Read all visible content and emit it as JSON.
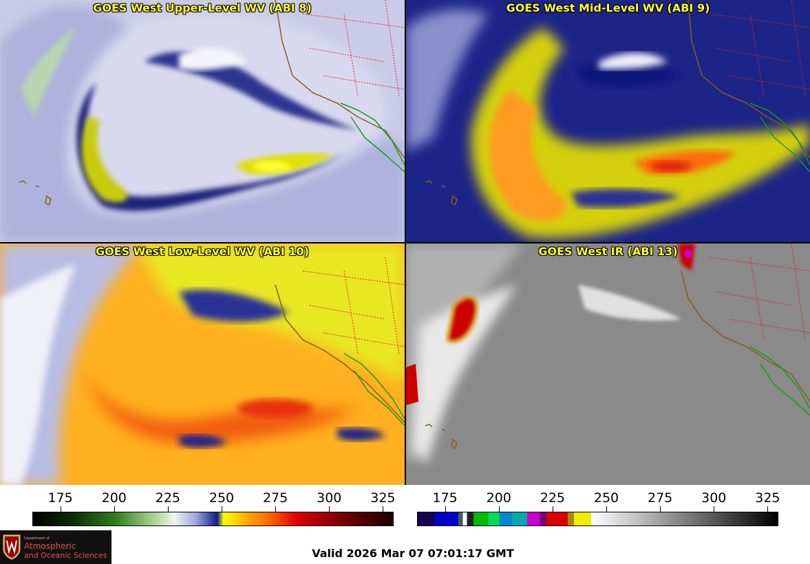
{
  "panels": [
    {
      "id": "p1",
      "title": "GOES West Upper-Level WV (ABI 8)"
    },
    {
      "id": "p2",
      "title": "GOES West Mid-Level WV (ABI 9)"
    },
    {
      "id": "p3",
      "title": "GOES West Low-Level WV (ABI 10)"
    },
    {
      "id": "p4",
      "title": "GOES West IR (ABI 13)"
    }
  ],
  "colorbar_wv": {
    "ticks": [
      "175",
      "200",
      "225",
      "250",
      "275",
      "300",
      "325"
    ],
    "range": [
      162,
      330
    ],
    "stops": [
      {
        "t": 162,
        "c": "#000000"
      },
      {
        "t": 180,
        "c": "#0c2a06"
      },
      {
        "t": 200,
        "c": "#2f7a1c"
      },
      {
        "t": 218,
        "c": "#a6d48c"
      },
      {
        "t": 228,
        "c": "#eef4ee"
      },
      {
        "t": 238,
        "c": "#9fa6e0"
      },
      {
        "t": 248,
        "c": "#101c8c"
      },
      {
        "t": 251,
        "c": "#ffff00"
      },
      {
        "t": 262,
        "c": "#ffaa00"
      },
      {
        "t": 272,
        "c": "#ff6a00"
      },
      {
        "t": 285,
        "c": "#e00000"
      },
      {
        "t": 305,
        "c": "#7a0000"
      },
      {
        "t": 330,
        "c": "#1a0000"
      }
    ]
  },
  "colorbar_ir": {
    "ticks": [
      "175",
      "200",
      "225",
      "250",
      "275",
      "300",
      "325"
    ],
    "range": [
      162,
      330
    ],
    "segments": [
      {
        "from": 162,
        "to": 170,
        "c": "#1a0055"
      },
      {
        "from": 170,
        "to": 181,
        "c": "#0000cc"
      },
      {
        "from": 181,
        "to": 183,
        "c": "#555555"
      },
      {
        "from": 183,
        "to": 185,
        "c": "#ffffff"
      },
      {
        "from": 185,
        "to": 188,
        "c": "#222222"
      },
      {
        "from": 188,
        "to": 195,
        "c": "#00bb00"
      },
      {
        "from": 195,
        "to": 200,
        "c": "#00dd55"
      },
      {
        "from": 200,
        "to": 206,
        "c": "#0088cc"
      },
      {
        "from": 206,
        "to": 213,
        "c": "#00aaaa"
      },
      {
        "from": 213,
        "to": 219,
        "c": "#cc00cc"
      },
      {
        "from": 219,
        "to": 222,
        "c": "#770077"
      },
      {
        "from": 222,
        "to": 232,
        "c": "#dd0000"
      },
      {
        "from": 232,
        "to": 235,
        "c": "#aa8800"
      },
      {
        "from": 235,
        "to": 243,
        "c": "#eeee00"
      }
    ],
    "gray_from": 243,
    "gray_to": 330
  },
  "logo": {
    "dept": "Department of",
    "name1": "Atmospheric",
    "name2": "and Oceanic Sciences"
  },
  "valid_time": "Valid 2026 Mar 07 07:01:17 GMT"
}
